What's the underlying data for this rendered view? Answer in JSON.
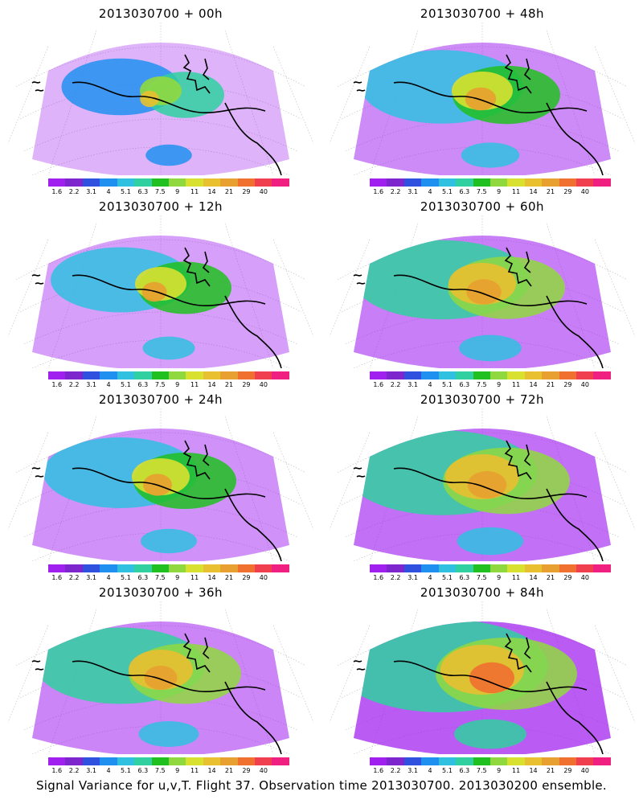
{
  "caption": "Signal Variance for u,v,T. Flight 37. Observation time 2013030700. 2013030200 ensemble.",
  "colorbar": {
    "colors": [
      "#a020f0",
      "#7d26cd",
      "#3050e0",
      "#2090f0",
      "#30c0e0",
      "#30d0a0",
      "#20c020",
      "#90d840",
      "#d8e030",
      "#e8c030",
      "#e8a030",
      "#f07030",
      "#f04050",
      "#f02080"
    ],
    "labels": [
      "1.6",
      "2.2",
      "3.1",
      "4",
      "5.1",
      "6.3",
      "7.5",
      "9",
      "11",
      "14",
      "21",
      "29",
      "40"
    ]
  },
  "panels": [
    {
      "title": "2013030700 + 00h"
    },
    {
      "title": "2013030700 + 48h"
    },
    {
      "title": "2013030700 + 12h"
    },
    {
      "title": "2013030700 + 60h"
    },
    {
      "title": "2013030700 + 24h"
    },
    {
      "title": "2013030700 + 72h"
    },
    {
      "title": "2013030700 + 36h"
    },
    {
      "title": "2013030700 + 84h"
    }
  ]
}
